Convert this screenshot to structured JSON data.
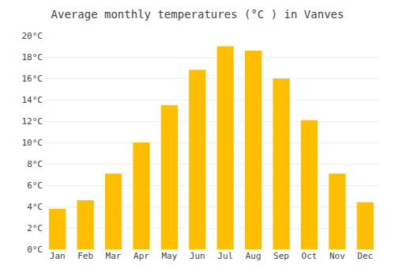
{
  "chart_data": {
    "type": "bar",
    "title": "Average monthly temperatures (°C ) in Vanves",
    "categories": [
      "Jan",
      "Feb",
      "Mar",
      "Apr",
      "May",
      "Jun",
      "Jul",
      "Aug",
      "Sep",
      "Oct",
      "Nov",
      "Dec"
    ],
    "values": [
      3.8,
      4.6,
      7.1,
      10.0,
      13.5,
      16.8,
      19.0,
      18.6,
      16.0,
      12.1,
      7.1,
      4.4
    ],
    "color": "#FFBF00",
    "ylim": [
      0,
      20
    ],
    "yticks": [
      {
        "value": 0,
        "label": "0°C"
      },
      {
        "value": 2,
        "label": "2°C"
      },
      {
        "value": 4,
        "label": "4°C"
      },
      {
        "value": 6,
        "label": "6°C"
      },
      {
        "value": 8,
        "label": "8°C"
      },
      {
        "value": 10,
        "label": "10°C"
      },
      {
        "value": 12,
        "label": "12°C"
      },
      {
        "value": 14,
        "label": "14°C"
      },
      {
        "value": 16,
        "label": "16°C"
      },
      {
        "value": 18,
        "label": "18°C"
      },
      {
        "value": 20,
        "label": "20°C"
      }
    ],
    "grid": true
  }
}
